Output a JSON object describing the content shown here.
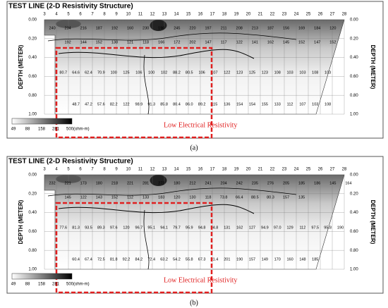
{
  "panels": [
    {
      "title": "TEST LINE (2-D Resistivity Structure)",
      "electrodes": [
        3,
        4,
        5,
        6,
        7,
        8,
        9,
        10,
        11,
        12,
        13,
        14,
        15,
        16,
        17,
        18,
        19,
        20,
        21,
        22,
        23,
        24,
        25,
        26,
        27,
        28
      ],
      "depth_ticks": [
        "0.00",
        "0.20",
        "0.40",
        "0.60",
        "0.80",
        "1.00"
      ],
      "depth_label": "DEPTH (METER)",
      "rows": [
        [
          "240",
          "234",
          "216",
          "187",
          "192",
          "160",
          "230",
          "190",
          "245",
          "220",
          "197",
          "211",
          "208",
          "213",
          "187",
          "156",
          "169",
          "184",
          "120"
        ],
        [
          "192",
          "144",
          "152",
          "138",
          "121",
          "118",
          "166",
          "172",
          "202",
          "147",
          "117",
          "122",
          "141",
          "162",
          "145",
          "152",
          "147",
          "152"
        ],
        [
          "80.7",
          "64.6",
          "62.4",
          "70.9",
          "100",
          "125",
          "106",
          "100",
          "102",
          "88.2",
          "80.5",
          "106",
          "107",
          "122",
          "123",
          "125",
          "123",
          "108",
          "103",
          "103",
          "108",
          "103"
        ],
        [
          "48.7",
          "47.2",
          "57.6",
          "82.2",
          "122",
          "98.9",
          "91.3",
          "85.8",
          "80.4",
          "86.0",
          "89.2",
          "115",
          "136",
          "154",
          "154",
          "155",
          "133",
          "112",
          "107",
          "103",
          "108"
        ]
      ],
      "scale_labels": [
        "49",
        "88",
        "158",
        "281",
        "500"
      ],
      "scale_unit": "(ohm-m)",
      "annotation": "Low Electrical Resistivity",
      "caption": "(a)"
    },
    {
      "title": "TEST LINE (2-D Resistivity Structure)",
      "electrodes": [
        3,
        4,
        5,
        6,
        7,
        8,
        9,
        10,
        11,
        12,
        13,
        14,
        15,
        16,
        17,
        18,
        19,
        20,
        21,
        22,
        23,
        24,
        25,
        26,
        27,
        28
      ],
      "depth_ticks": [
        "0.00",
        "0.20",
        "0.40",
        "0.60",
        "0.80",
        "1.00"
      ],
      "depth_label": "DEPTH (METER)",
      "rows": [
        [
          "232",
          "221",
          "173",
          "180",
          "218",
          "221",
          "281",
          "272",
          "180",
          "212",
          "241",
          "204",
          "242",
          "235",
          "276",
          "205",
          "185",
          "186",
          "145",
          "164"
        ],
        [
          "145",
          "122",
          "143",
          "152",
          "112",
          "133",
          "183",
          "120",
          "130",
          "118",
          "73.8",
          "66.4",
          "88.5",
          "80.3",
          "157",
          "135"
        ],
        [
          "77.6",
          "81.3",
          "93.5",
          "89.3",
          "97.6",
          "120",
          "96.7",
          "95.1",
          "94.1",
          "79.7",
          "95.9",
          "94.8",
          "94.8",
          "131",
          "162",
          "127",
          "94.9",
          "97.0",
          "129",
          "112",
          "97.5",
          "95.8",
          "190"
        ],
        [
          "60.4",
          "67.4",
          "72.5",
          "81.8",
          "92.2",
          "84.2",
          "72.4",
          "63.2",
          "54.2",
          "55.8",
          "67.3",
          "91.4",
          "201",
          "190",
          "157",
          "149",
          "170",
          "160",
          "148",
          "185"
        ]
      ],
      "scale_labels": [
        "49",
        "88",
        "158",
        "281",
        "500"
      ],
      "scale_unit": "(ohm-m)",
      "annotation": "Low Electrical Resistivity",
      "caption": "(b)"
    }
  ]
}
